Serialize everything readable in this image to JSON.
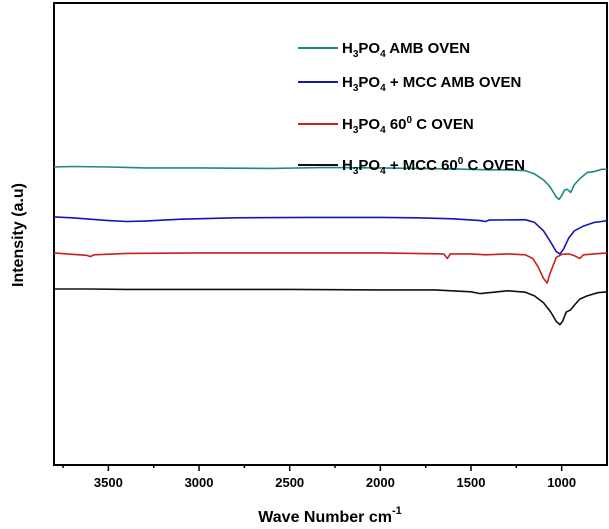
{
  "chart_data": {
    "type": "line",
    "xlabel": "Wave Number cm",
    "xlabel_sup": "-1",
    "ylabel": "Intensity (a.u)",
    "xlim": [
      3800,
      750
    ],
    "x_reversed": true,
    "xticks": [
      3500,
      3000,
      2500,
      2000,
      1500,
      1000
    ],
    "xtick_labels": [
      "3500",
      "3000",
      "2500",
      "2000",
      "1500",
      "1000"
    ],
    "y_ticks_visible": false,
    "grid": false,
    "legend_position": "top-right",
    "series": [
      {
        "name": "H3PO4 AMB OVEN",
        "legend_parts": [
          [
            "H",
            ""
          ],
          [
            "3",
            "sub"
          ],
          [
            "PO",
            ""
          ],
          [
            "4",
            "sub"
          ],
          [
            " AMB OVEN",
            ""
          ]
        ],
        "color": "#1a8a86",
        "offset": 0.645,
        "points": [
          [
            3800,
            0
          ],
          [
            3700,
            0.001
          ],
          [
            3500,
            0
          ],
          [
            3300,
            -0.002
          ],
          [
            3000,
            -0.002
          ],
          [
            2600,
            -0.003
          ],
          [
            2300,
            -0.001
          ],
          [
            2000,
            -0.002
          ],
          [
            1800,
            -0.003
          ],
          [
            1600,
            -0.004
          ],
          [
            1400,
            -0.006
          ],
          [
            1300,
            -0.006
          ],
          [
            1200,
            -0.008
          ],
          [
            1150,
            -0.015
          ],
          [
            1100,
            -0.028
          ],
          [
            1070,
            -0.04
          ],
          [
            1050,
            -0.052
          ],
          [
            1030,
            -0.065
          ],
          [
            1015,
            -0.07
          ],
          [
            1000,
            -0.062
          ],
          [
            985,
            -0.05
          ],
          [
            970,
            -0.048
          ],
          [
            950,
            -0.055
          ],
          [
            930,
            -0.038
          ],
          [
            900,
            -0.025
          ],
          [
            860,
            -0.012
          ],
          [
            820,
            -0.01
          ],
          [
            780,
            -0.005
          ],
          [
            750,
            -0.005
          ]
        ]
      },
      {
        "name": "H3PO4 + MCC AMB OVEN",
        "legend_parts": [
          [
            "H",
            ""
          ],
          [
            "3",
            "sub"
          ],
          [
            "PO",
            ""
          ],
          [
            "4",
            "sub"
          ],
          [
            " + MCC AMB OVEN",
            ""
          ]
        ],
        "color": "#1515b5",
        "offset": 0.537,
        "points": [
          [
            3800,
            0
          ],
          [
            3700,
            -0.002
          ],
          [
            3600,
            -0.005
          ],
          [
            3500,
            -0.008
          ],
          [
            3400,
            -0.01
          ],
          [
            3300,
            -0.009
          ],
          [
            3100,
            -0.005
          ],
          [
            2800,
            -0.002
          ],
          [
            2400,
            -0.001
          ],
          [
            2000,
            -0.001
          ],
          [
            1800,
            -0.002
          ],
          [
            1600,
            -0.004
          ],
          [
            1450,
            -0.008
          ],
          [
            1420,
            -0.01
          ],
          [
            1400,
            -0.007
          ],
          [
            1200,
            -0.006
          ],
          [
            1150,
            -0.012
          ],
          [
            1100,
            -0.03
          ],
          [
            1060,
            -0.055
          ],
          [
            1030,
            -0.075
          ],
          [
            1010,
            -0.08
          ],
          [
            990,
            -0.07
          ],
          [
            960,
            -0.045
          ],
          [
            930,
            -0.03
          ],
          [
            880,
            -0.02
          ],
          [
            820,
            -0.012
          ],
          [
            780,
            -0.01
          ],
          [
            750,
            -0.008
          ]
        ]
      },
      {
        "name": "H3PO4 60⁰ C OVEN",
        "legend_parts": [
          [
            "H",
            ""
          ],
          [
            "3",
            "sub"
          ],
          [
            "PO",
            ""
          ],
          [
            "4",
            "sub"
          ],
          [
            " 60",
            ""
          ],
          [
            "0",
            "sup"
          ],
          [
            " C OVEN",
            ""
          ]
        ],
        "color": "#cc1f1f",
        "offset": 0.459,
        "points": [
          [
            3800,
            0
          ],
          [
            3700,
            -0.003
          ],
          [
            3620,
            -0.005
          ],
          [
            3600,
            -0.008
          ],
          [
            3580,
            -0.004
          ],
          [
            3400,
            -0.001
          ],
          [
            3000,
            0
          ],
          [
            2500,
            0
          ],
          [
            2000,
            0
          ],
          [
            1650,
            -0.002
          ],
          [
            1630,
            -0.012
          ],
          [
            1615,
            -0.002
          ],
          [
            1500,
            -0.002
          ],
          [
            1420,
            -0.004
          ],
          [
            1300,
            -0.002
          ],
          [
            1200,
            -0.004
          ],
          [
            1160,
            -0.012
          ],
          [
            1130,
            -0.03
          ],
          [
            1100,
            -0.055
          ],
          [
            1080,
            -0.065
          ],
          [
            1065,
            -0.045
          ],
          [
            1050,
            -0.03
          ],
          [
            1030,
            -0.01
          ],
          [
            1000,
            -0.003
          ],
          [
            960,
            -0.002
          ],
          [
            930,
            -0.006
          ],
          [
            900,
            -0.012
          ],
          [
            880,
            -0.004
          ],
          [
            820,
            -0.002
          ],
          [
            750,
            0
          ]
        ]
      },
      {
        "name": "H3PO4 + MCC 60⁰ C OVEN",
        "legend_parts": [
          [
            "H",
            ""
          ],
          [
            "3",
            "sub"
          ],
          [
            "PO",
            ""
          ],
          [
            "4",
            "sub"
          ],
          [
            " + MCC 60",
            ""
          ],
          [
            "0",
            "sup"
          ],
          [
            " C OVEN",
            ""
          ]
        ],
        "color": "#111111",
        "offset": 0.381,
        "points": [
          [
            3800,
            0
          ],
          [
            3600,
            0
          ],
          [
            3400,
            -0.001
          ],
          [
            3000,
            -0.001
          ],
          [
            2500,
            -0.001
          ],
          [
            2000,
            -0.002
          ],
          [
            1700,
            -0.002
          ],
          [
            1500,
            -0.006
          ],
          [
            1450,
            -0.01
          ],
          [
            1400,
            -0.008
          ],
          [
            1300,
            -0.004
          ],
          [
            1200,
            -0.007
          ],
          [
            1150,
            -0.015
          ],
          [
            1100,
            -0.03
          ],
          [
            1060,
            -0.05
          ],
          [
            1030,
            -0.07
          ],
          [
            1010,
            -0.077
          ],
          [
            995,
            -0.07
          ],
          [
            975,
            -0.05
          ],
          [
            950,
            -0.045
          ],
          [
            930,
            -0.035
          ],
          [
            900,
            -0.022
          ],
          [
            860,
            -0.015
          ],
          [
            800,
            -0.008
          ],
          [
            750,
            -0.006
          ]
        ]
      }
    ]
  }
}
